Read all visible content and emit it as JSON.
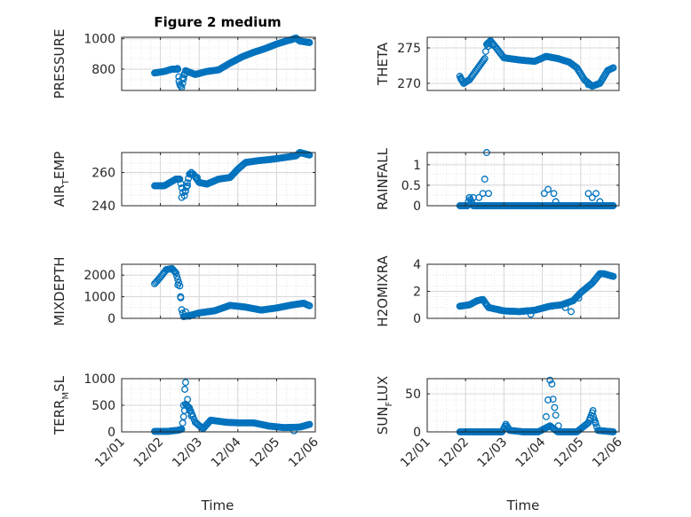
{
  "figure": {
    "title": "Figure 2 medium",
    "xlabel": "Time",
    "marker_color": "#0072BD",
    "axis_color": "#262626",
    "grid_color": "#dfdfdf"
  },
  "chart_data": [
    {
      "id": "pressure",
      "type": "scatter",
      "ylabel": "PRESSURE",
      "ylabel_main": "PRESSURE",
      "ylabel_sub": "",
      "ylabel_tail": "",
      "ylim": [
        660,
        1010
      ],
      "yticks": [
        800,
        1000
      ],
      "ytick_labels": [
        "800",
        "1000"
      ],
      "x_day_range": [
        1,
        6
      ],
      "xticks": [
        1,
        2,
        3,
        4,
        5,
        6
      ],
      "xtick_labels": [
        "12/01",
        "12/02",
        "12/03",
        "12/04",
        "12/05",
        "12/06"
      ],
      "trend": [
        [
          1.85,
          775
        ],
        [
          2.1,
          785
        ],
        [
          2.3,
          800
        ],
        [
          2.45,
          800
        ],
        [
          2.5,
          700
        ],
        [
          2.55,
          680
        ],
        [
          2.65,
          790
        ],
        [
          2.9,
          765
        ],
        [
          3.2,
          785
        ],
        [
          3.5,
          795
        ],
        [
          3.8,
          840
        ],
        [
          4.1,
          880
        ],
        [
          4.4,
          910
        ],
        [
          4.7,
          935
        ],
        [
          5.0,
          965
        ],
        [
          5.25,
          985
        ],
        [
          5.4,
          995
        ],
        [
          5.5,
          1005
        ],
        [
          5.6,
          985
        ],
        [
          5.85,
          975
        ]
      ],
      "extra_points": [
        [
          2.52,
          690
        ],
        [
          2.48,
          720
        ],
        [
          2.58,
          745
        ],
        [
          2.62,
          770
        ],
        [
          2.44,
          805
        ]
      ]
    },
    {
      "id": "theta",
      "type": "scatter",
      "ylabel": "THETA",
      "ylabel_main": "THETA",
      "ylabel_sub": "",
      "ylabel_tail": "",
      "ylim": [
        269,
        276.5
      ],
      "yticks": [
        270,
        275
      ],
      "ytick_labels": [
        "270",
        "275"
      ],
      "x_day_range": [
        1,
        6
      ],
      "xticks": [
        1,
        2,
        3,
        4,
        5,
        6
      ],
      "xtick_labels": [
        "12/01",
        "12/02",
        "12/03",
        "12/04",
        "12/05",
        "12/06"
      ],
      "trend": [
        [
          1.85,
          271
        ],
        [
          1.95,
          270
        ],
        [
          2.1,
          270.5
        ],
        [
          2.3,
          272
        ],
        [
          2.5,
          273.5
        ],
        [
          2.55,
          275.5
        ],
        [
          2.65,
          276
        ],
        [
          2.8,
          275
        ],
        [
          3.0,
          273.6
        ],
        [
          3.4,
          273.3
        ],
        [
          3.8,
          273.1
        ],
        [
          4.1,
          273.8
        ],
        [
          4.4,
          273.5
        ],
        [
          4.7,
          273.0
        ],
        [
          4.9,
          272.2
        ],
        [
          5.1,
          270.5
        ],
        [
          5.3,
          269.6
        ],
        [
          5.5,
          270
        ],
        [
          5.7,
          271.8
        ],
        [
          5.85,
          272.2
        ]
      ],
      "extra_points": [
        [
          1.88,
          270.6
        ],
        [
          2.58,
          275.2
        ],
        [
          2.7,
          275.4
        ],
        [
          5.2,
          269.8
        ]
      ]
    },
    {
      "id": "airtemp",
      "type": "scatter",
      "ylabel": "AIR_TEMP",
      "ylabel_main": "AIR",
      "ylabel_sub": "T",
      "ylabel_tail": "EMP",
      "ylim": [
        240,
        272
      ],
      "yticks": [
        240,
        260
      ],
      "ytick_labels": [
        "240",
        "260"
      ],
      "x_day_range": [
        1,
        6
      ],
      "xticks": [
        1,
        2,
        3,
        4,
        5,
        6
      ],
      "xtick_labels": [
        "12/01",
        "12/02",
        "12/03",
        "12/04",
        "12/05",
        "12/06"
      ],
      "trend": [
        [
          1.85,
          252
        ],
        [
          2.1,
          252
        ],
        [
          2.4,
          256
        ],
        [
          2.5,
          256
        ],
        [
          2.58,
          248
        ],
        [
          2.62,
          246
        ],
        [
          2.75,
          259
        ],
        [
          2.85,
          259
        ],
        [
          3.0,
          254
        ],
        [
          3.2,
          253
        ],
        [
          3.5,
          256
        ],
        [
          3.8,
          257
        ],
        [
          4.0,
          262
        ],
        [
          4.2,
          266
        ],
        [
          4.5,
          267
        ],
        [
          4.9,
          268
        ],
        [
          5.2,
          269
        ],
        [
          5.5,
          270
        ],
        [
          5.6,
          272
        ],
        [
          5.85,
          270.5
        ]
      ],
      "extra_points": [
        [
          2.55,
          245
        ],
        [
          2.65,
          249
        ],
        [
          2.7,
          252
        ],
        [
          2.8,
          260
        ],
        [
          2.95,
          257
        ]
      ]
    },
    {
      "id": "rainfall",
      "type": "scatter",
      "ylabel": "RAINFALL",
      "ylabel_main": "RAINFALL",
      "ylabel_sub": "",
      "ylabel_tail": "",
      "ylim": [
        0,
        1.3
      ],
      "yticks": [
        0,
        0.5,
        1
      ],
      "ytick_labels": [
        "0",
        "0.5",
        "1"
      ],
      "x_day_range": [
        1,
        6
      ],
      "xticks": [
        1,
        2,
        3,
        4,
        5,
        6
      ],
      "xtick_labels": [
        "12/01",
        "12/02",
        "12/03",
        "12/04",
        "12/05",
        "12/06"
      ],
      "trend": [
        [
          1.85,
          0
        ],
        [
          2.05,
          0
        ],
        [
          2.1,
          0.2
        ],
        [
          2.2,
          0
        ],
        [
          2.3,
          0
        ],
        [
          2.6,
          0
        ],
        [
          3.0,
          0
        ],
        [
          3.5,
          0
        ],
        [
          3.9,
          0
        ],
        [
          4.2,
          0
        ],
        [
          4.6,
          0
        ],
        [
          5.0,
          0
        ],
        [
          5.4,
          0
        ],
        [
          5.85,
          0
        ]
      ],
      "extra_points": [
        [
          2.1,
          0.2
        ],
        [
          2.2,
          0.2
        ],
        [
          2.35,
          0.2
        ],
        [
          2.45,
          0.3
        ],
        [
          2.5,
          0.65
        ],
        [
          2.55,
          1.3
        ],
        [
          2.6,
          0.3
        ],
        [
          4.05,
          0.3
        ],
        [
          4.15,
          0.4
        ],
        [
          4.3,
          0.3
        ],
        [
          4.35,
          0.1
        ],
        [
          5.2,
          0.3
        ],
        [
          5.3,
          0.2
        ],
        [
          5.4,
          0.3
        ],
        [
          5.5,
          0.1
        ]
      ]
    },
    {
      "id": "mixdepth",
      "type": "scatter",
      "ylabel": "MIXDEPTH",
      "ylabel_main": "MIXDEPTH",
      "ylabel_sub": "",
      "ylabel_tail": "",
      "ylim": [
        0,
        2500
      ],
      "yticks": [
        0,
        1000,
        2000
      ],
      "ytick_labels": [
        "0",
        "1000",
        "2000"
      ],
      "x_day_range": [
        1,
        6
      ],
      "xticks": [
        1,
        2,
        3,
        4,
        5,
        6
      ],
      "xtick_labels": [
        "12/01",
        "12/02",
        "12/03",
        "12/04",
        "12/05",
        "12/06"
      ],
      "trend": [
        [
          1.85,
          1600
        ],
        [
          2.0,
          1900
        ],
        [
          2.15,
          2250
        ],
        [
          2.3,
          2300
        ],
        [
          2.4,
          2100
        ],
        [
          2.5,
          1500
        ],
        [
          2.55,
          400
        ],
        [
          2.6,
          80
        ],
        [
          2.8,
          150
        ],
        [
          3.0,
          250
        ],
        [
          3.4,
          350
        ],
        [
          3.8,
          600
        ],
        [
          4.2,
          520
        ],
        [
          4.6,
          380
        ],
        [
          5.0,
          480
        ],
        [
          5.4,
          620
        ],
        [
          5.7,
          700
        ],
        [
          5.85,
          580
        ]
      ],
      "extra_points": [
        [
          2.45,
          1550
        ],
        [
          2.52,
          1000
        ],
        [
          2.65,
          300
        ],
        [
          2.75,
          100
        ]
      ]
    },
    {
      "id": "h2omixra",
      "type": "scatter",
      "ylabel": "H2OMIXRA",
      "ylabel_main": "H2OMIXRA",
      "ylabel_sub": "",
      "ylabel_tail": "",
      "ylim": [
        0,
        4
      ],
      "yticks": [
        0,
        2,
        4
      ],
      "ytick_labels": [
        "0",
        "2",
        "4"
      ],
      "x_day_range": [
        1,
        6
      ],
      "xticks": [
        1,
        2,
        3,
        4,
        5,
        6
      ],
      "xtick_labels": [
        "12/01",
        "12/02",
        "12/03",
        "12/04",
        "12/05",
        "12/06"
      ],
      "trend": [
        [
          1.85,
          0.9
        ],
        [
          2.1,
          1.0
        ],
        [
          2.3,
          1.3
        ],
        [
          2.45,
          1.4
        ],
        [
          2.6,
          0.8
        ],
        [
          3.0,
          0.55
        ],
        [
          3.4,
          0.5
        ],
        [
          3.8,
          0.6
        ],
        [
          4.2,
          0.9
        ],
        [
          4.5,
          1.0
        ],
        [
          4.8,
          1.3
        ],
        [
          5.0,
          1.9
        ],
        [
          5.3,
          2.6
        ],
        [
          5.5,
          3.3
        ],
        [
          5.6,
          3.3
        ],
        [
          5.85,
          3.1
        ]
      ],
      "extra_points": [
        [
          2.55,
          1.0
        ],
        [
          3.7,
          0.3
        ],
        [
          4.25,
          0.9
        ],
        [
          4.6,
          0.8
        ],
        [
          4.75,
          0.5
        ],
        [
          4.95,
          1.5
        ]
      ]
    },
    {
      "id": "terrmsl",
      "type": "scatter",
      "ylabel": "TERR_MSL",
      "ylabel_main": "TERR",
      "ylabel_sub": "M",
      "ylabel_tail": "SL",
      "ylim": [
        0,
        1000
      ],
      "yticks": [
        0,
        500,
        1000
      ],
      "ytick_labels": [
        "0",
        "500",
        "1000"
      ],
      "x_day_range": [
        1,
        6
      ],
      "xticks": [
        1,
        2,
        3,
        4,
        5,
        6
      ],
      "xtick_labels": [
        "12/01",
        "12/02",
        "12/03",
        "12/04",
        "12/05",
        "12/06"
      ],
      "trend": [
        [
          1.85,
          10
        ],
        [
          2.2,
          10
        ],
        [
          2.45,
          30
        ],
        [
          2.55,
          50
        ],
        [
          2.65,
          520
        ],
        [
          2.75,
          450
        ],
        [
          2.9,
          180
        ],
        [
          3.1,
          60
        ],
        [
          3.3,
          220
        ],
        [
          3.7,
          180
        ],
        [
          4.0,
          170
        ],
        [
          4.4,
          170
        ],
        [
          4.8,
          110
        ],
        [
          5.2,
          80
        ],
        [
          5.6,
          90
        ],
        [
          5.85,
          140
        ]
      ],
      "extra_points": [
        [
          2.6,
          500
        ],
        [
          2.63,
          800
        ],
        [
          2.65,
          930
        ],
        [
          2.7,
          610
        ],
        [
          2.75,
          400
        ],
        [
          2.8,
          300
        ],
        [
          5.45,
          20
        ]
      ]
    },
    {
      "id": "sunflux",
      "type": "scatter",
      "ylabel": "SUN_FLUX",
      "ylabel_main": "SUN",
      "ylabel_sub": "F",
      "ylabel_tail": "LUX",
      "ylim": [
        0,
        70
      ],
      "yticks": [
        0,
        50
      ],
      "ytick_labels": [
        "0",
        "50"
      ],
      "x_day_range": [
        1,
        6
      ],
      "xticks": [
        1,
        2,
        3,
        4,
        5,
        6
      ],
      "xtick_labels": [
        "12/01",
        "12/02",
        "12/03",
        "12/04",
        "12/05",
        "12/06"
      ],
      "trend": [
        [
          1.85,
          0
        ],
        [
          2.5,
          0
        ],
        [
          2.95,
          0
        ],
        [
          3.05,
          10
        ],
        [
          3.15,
          2
        ],
        [
          3.5,
          0
        ],
        [
          3.9,
          0
        ],
        [
          4.2,
          8
        ],
        [
          4.4,
          0
        ],
        [
          4.9,
          0
        ],
        [
          5.2,
          12
        ],
        [
          5.3,
          25
        ],
        [
          5.45,
          2
        ],
        [
          5.85,
          0
        ]
      ],
      "extra_points": [
        [
          4.1,
          20
        ],
        [
          4.15,
          42
        ],
        [
          4.2,
          68
        ],
        [
          4.25,
          63
        ],
        [
          4.28,
          43
        ],
        [
          4.32,
          32
        ],
        [
          4.35,
          22
        ],
        [
          4.42,
          8
        ],
        [
          5.25,
          18
        ],
        [
          5.32,
          28
        ],
        [
          5.38,
          13
        ]
      ]
    }
  ]
}
